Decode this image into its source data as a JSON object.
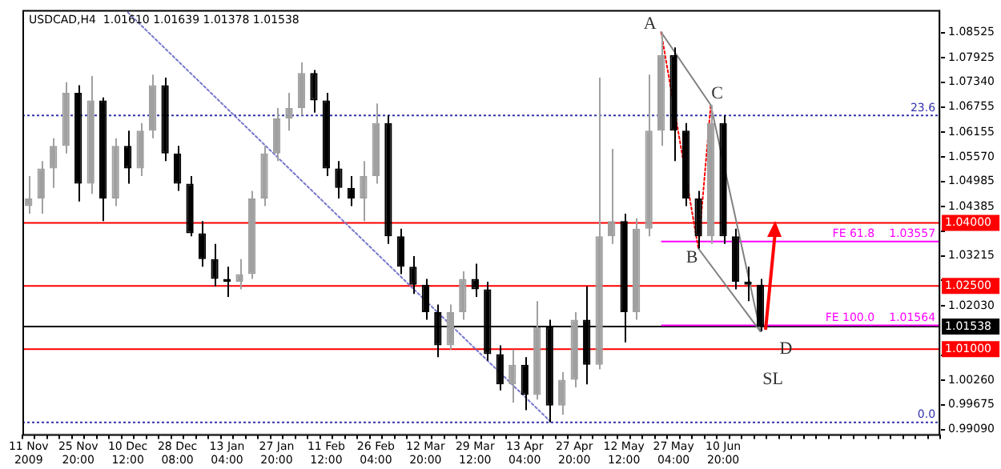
{
  "chart_data": {
    "type": "candlestick",
    "title": "USDCAD,H4  1.01610 1.01639 1.01378 1.01538",
    "categories": [
      "11 Nov 2009",
      null,
      null,
      null,
      "25 Nov 20:00",
      null,
      null,
      null,
      "10 Dec 12:00",
      null,
      null,
      null,
      "28 Dec 08:00",
      null,
      null,
      null,
      "13 Jan 04:00",
      null,
      null,
      null,
      "27 Jan 20:00",
      null,
      null,
      null,
      "11 Feb 12:00",
      null,
      null,
      null,
      "26 Feb 04:00",
      null,
      null,
      null,
      "12 Mar 20:00",
      null,
      null,
      null,
      "29 Mar 12:00",
      null,
      null,
      null,
      "13 Apr 04:00",
      null,
      null,
      null,
      "27 Apr 20:00",
      null,
      null,
      null,
      "12 May 12:00",
      null,
      null,
      null,
      "27 May 04:00",
      null,
      null,
      null,
      "10 Jun 20:00",
      null,
      null,
      null,
      null,
      null,
      null,
      null,
      null,
      null,
      null,
      null,
      null,
      null,
      null,
      null,
      null,
      null
    ],
    "series": [
      {
        "colors": [
          "#a0a0a0",
          "#a0a0a0",
          "#a0a0a0",
          "#a0a0a0",
          "#000000",
          "#a0a0a0",
          "#000000",
          "#a0a0a0",
          "#000000",
          "#a0a0a0",
          "#a0a0a0",
          "#000000",
          "#000000",
          "#000000",
          "#000000",
          "#000000",
          "#000000",
          "#a0a0a0",
          "#a0a0a0",
          "#a0a0a0",
          "#a0a0a0",
          "#a0a0a0",
          "#a0a0a0",
          "#000000",
          "#000000",
          "#000000",
          "#000000",
          "#a0a0a0",
          "#a0a0a0",
          "#000000",
          "#000000",
          "#000000",
          "#000000",
          "#000000",
          "#a0a0a0",
          "#a0a0a0",
          "#000000",
          "#000000",
          "#000000",
          "#a0a0a0",
          "#000000",
          "#a0a0a0",
          "#000000",
          "#a0a0a0",
          "#a0a0a0",
          "#000000",
          "#a0a0a0",
          "#a0a0a0",
          "#000000",
          "#a0a0a0",
          "#a0a0a0",
          "#a0a0a0",
          "#000000",
          "#000000",
          "#000000",
          "#a0a0a0",
          "#000000",
          "#000000",
          "#000000",
          "#000000",
          null,
          null,
          null,
          null,
          null,
          null,
          null,
          null,
          null,
          null,
          null,
          null,
          null,
          null
        ],
        "ohlc": [
          [
            1.044,
            1.0511,
            1.0422,
            1.0458
          ],
          [
            1.0458,
            1.0547,
            1.0422,
            1.0529
          ],
          [
            1.0529,
            1.0601,
            1.0483,
            1.0583
          ],
          [
            1.0583,
            1.0734,
            1.0565,
            1.0709
          ],
          [
            1.0709,
            1.0727,
            1.0451,
            1.0493
          ],
          [
            1.0493,
            1.0749,
            1.0469,
            1.0691
          ],
          [
            1.0691,
            1.0698,
            1.0404,
            1.0458
          ],
          [
            1.0458,
            1.0601,
            1.044,
            1.0583
          ],
          [
            1.0583,
            1.0619,
            1.0493,
            1.0529
          ],
          [
            1.0529,
            1.0637,
            1.0511,
            1.0619
          ],
          [
            1.0619,
            1.0752,
            1.0601,
            1.0727
          ],
          [
            1.0727,
            1.0745,
            1.0547,
            1.0565
          ],
          [
            1.0565,
            1.0583,
            1.0476,
            1.0493
          ],
          [
            1.0493,
            1.0511,
            1.0368,
            1.0375
          ],
          [
            1.0375,
            1.0404,
            1.0296,
            1.0314
          ],
          [
            1.0314,
            1.035,
            1.0249,
            1.0267
          ],
          [
            1.0267,
            1.0296,
            1.0224,
            1.026
          ],
          [
            1.026,
            1.0314,
            1.0242,
            1.0278
          ],
          [
            1.0278,
            1.0476,
            1.0267,
            1.0458
          ],
          [
            1.0458,
            1.0583,
            1.044,
            1.0565
          ],
          [
            1.0565,
            1.0673,
            1.0547,
            1.0648
          ],
          [
            1.0648,
            1.0709,
            1.0619,
            1.0673
          ],
          [
            1.0673,
            1.0781,
            1.0655,
            1.0756
          ],
          [
            1.0756,
            1.0763,
            1.0662,
            1.0691
          ],
          [
            1.0691,
            1.0709,
            1.0511,
            1.0529
          ],
          [
            1.0529,
            1.0547,
            1.0458,
            1.0483
          ],
          [
            1.0483,
            1.0511,
            1.044,
            1.0458
          ],
          [
            1.0458,
            1.0547,
            1.0404,
            1.0511
          ],
          [
            1.0511,
            1.0684,
            1.0493,
            1.0637
          ],
          [
            1.0637,
            1.0655,
            1.035,
            1.0368
          ],
          [
            1.0368,
            1.0386,
            1.0278,
            1.0296
          ],
          [
            1.0296,
            1.0321,
            1.0231,
            1.0253
          ],
          [
            1.0253,
            1.0267,
            1.017,
            1.0188
          ],
          [
            1.0188,
            1.0206,
            1.0081,
            1.0109
          ],
          [
            1.0109,
            1.0206,
            1.0099,
            1.0188
          ],
          [
            1.0188,
            1.0285,
            1.017,
            1.0267
          ],
          [
            1.0267,
            1.0303,
            1.0224,
            1.0242
          ],
          [
            1.0242,
            1.026,
            1.0073,
            1.0088
          ],
          [
            1.0088,
            1.0109,
            1.0002,
            1.0016
          ],
          [
            1.0016,
            1.0099,
            0.9973,
            1.0063
          ],
          [
            1.0063,
            1.0081,
            0.9955,
            0.9991
          ],
          [
            0.9991,
            1.0214,
            0.998,
            1.0152
          ],
          [
            1.0152,
            1.017,
            0.9926,
            0.9966
          ],
          [
            0.9966,
            1.0045,
            0.9944,
            1.0027
          ],
          [
            1.0027,
            1.0188,
            1.0009,
            1.017
          ],
          [
            1.017,
            1.0249,
            1.0016,
            1.0063
          ],
          [
            1.0063,
            1.0745,
            1.0052,
            1.0368
          ],
          [
            1.0368,
            1.0576,
            1.035,
            1.0404
          ],
          [
            1.0404,
            1.0422,
            1.0116,
            1.0188
          ],
          [
            1.0188,
            1.0411,
            1.017,
            1.0386
          ],
          [
            1.0386,
            1.0752,
            1.0368,
            1.0619
          ],
          [
            1.0619,
            1.0853,
            1.0583,
            1.0799
          ],
          [
            1.0799,
            1.0817,
            1.0547,
            1.0619
          ],
          [
            1.0619,
            1.0637,
            1.044,
            1.0458
          ],
          [
            1.0458,
            1.0476,
            1.0339,
            1.0368
          ],
          [
            1.0368,
            1.068,
            1.035,
            1.0637
          ],
          [
            1.0637,
            1.0655,
            1.035,
            1.0368
          ],
          [
            1.0368,
            1.0386,
            1.0242,
            1.026
          ],
          [
            1.026,
            1.0296,
            1.0214,
            1.0253
          ],
          [
            1.0253,
            1.0267,
            1.0142,
            1.01538
          ],
          null,
          null,
          null,
          null,
          null,
          null,
          null,
          null,
          null,
          null,
          null,
          null,
          null,
          null
        ]
      },
      {
        "type": "line",
        "color": "#7777cc",
        "line_style": "dotted",
        "values": [
          null,
          null,
          null,
          null,
          null,
          null,
          null,
          null,
          1.09,
          null,
          null,
          null,
          null,
          null,
          null,
          null,
          null,
          null,
          null,
          null,
          null,
          null,
          null,
          null,
          null,
          null,
          null,
          null,
          null,
          null,
          null,
          null,
          null,
          null,
          null,
          null,
          null,
          null,
          null,
          null,
          null,
          null,
          0.993,
          null,
          null,
          null,
          null,
          null,
          null,
          null,
          null,
          null,
          null,
          null,
          null,
          null,
          null,
          null,
          null,
          null,
          null,
          null,
          null,
          null,
          null,
          null,
          null,
          null,
          null,
          null,
          null,
          null,
          null,
          null
        ]
      },
      {
        "type": "line",
        "color": "#808080",
        "line_style": "solid",
        "values": [
          null,
          null,
          null,
          null,
          null,
          null,
          null,
          null,
          null,
          null,
          null,
          null,
          null,
          null,
          null,
          null,
          null,
          null,
          null,
          null,
          null,
          null,
          null,
          null,
          null,
          null,
          null,
          null,
          null,
          null,
          null,
          null,
          null,
          null,
          null,
          null,
          null,
          null,
          null,
          null,
          null,
          null,
          null,
          null,
          null,
          null,
          null,
          null,
          null,
          null,
          null,
          1.0853,
          null,
          null,
          null,
          1.068,
          null,
          null,
          null,
          1.0142,
          null,
          null,
          null,
          null,
          null,
          null,
          null,
          null,
          null,
          null,
          null,
          null,
          null,
          null
        ]
      },
      {
        "type": "line",
        "color": "#808080",
        "line_style": "solid",
        "values": [
          null,
          null,
          null,
          null,
          null,
          null,
          null,
          null,
          null,
          null,
          null,
          null,
          null,
          null,
          null,
          null,
          null,
          null,
          null,
          null,
          null,
          null,
          null,
          null,
          null,
          null,
          null,
          null,
          null,
          null,
          null,
          null,
          null,
          null,
          null,
          null,
          null,
          null,
          null,
          null,
          null,
          null,
          null,
          null,
          null,
          null,
          null,
          null,
          null,
          null,
          null,
          null,
          null,
          null,
          1.0339,
          null,
          null,
          null,
          null,
          1.0142,
          null,
          null,
          null,
          null,
          null,
          null,
          null,
          null,
          null,
          null,
          null,
          null,
          null,
          null
        ]
      },
      {
        "type": "line",
        "color": "#ff0000",
        "line_style": "dotted",
        "values": [
          null,
          null,
          null,
          null,
          null,
          null,
          null,
          null,
          null,
          null,
          null,
          null,
          null,
          null,
          null,
          null,
          null,
          null,
          null,
          null,
          null,
          null,
          null,
          null,
          null,
          null,
          null,
          null,
          null,
          null,
          null,
          null,
          null,
          null,
          null,
          null,
          null,
          null,
          null,
          null,
          null,
          null,
          null,
          null,
          null,
          null,
          null,
          null,
          null,
          null,
          null,
          1.0853,
          null,
          null,
          1.0339,
          1.068,
          null,
          null,
          null,
          null,
          null,
          null,
          null,
          null,
          null,
          null,
          null,
          null,
          null,
          null,
          null,
          null,
          null,
          null
        ]
      }
    ],
    "ylim": [
      0.9898,
      1.0906
    ],
    "yticks": [
      1.08525,
      1.07925,
      {
        "value": 1.0734,
        "label": "1.07340"
      },
      1.06755,
      1.06155,
      {
        "value": 1.0557,
        "label": "1.05570"
      },
      1.04985,
      1.04385,
      {
        "value": 1.038,
        "label": null
      },
      1.03215,
      {
        "value": 1.0263,
        "label": null
      },
      {
        "value": 1.0203,
        "label": "1.02030"
      },
      {
        "value": 1.0086,
        "label": null
      },
      {
        "value": 1.0026,
        "label": "1.00260"
      },
      0.99675,
      {
        "value": 0.9909,
        "label": "0.99090"
      }
    ],
    "ref_lines": [
      {
        "axis": "y",
        "value": 1.0655,
        "color": "#3333aa",
        "line_style": "dotted"
      },
      {
        "axis": "y",
        "value": 0.9926,
        "color": "#3333aa",
        "line_style": "dotted"
      },
      {
        "axis": "y",
        "value": 1.04,
        "label": "1.04000",
        "color": "#ff0000",
        "line_style": "solid"
      },
      {
        "axis": "y",
        "value": 1.025,
        "label": "1.02500",
        "color": "#ff0000",
        "line_style": "solid"
      },
      {
        "axis": "y",
        "value": 1.01,
        "label": "1.01000",
        "color": "#ff0000",
        "line_style": "solid"
      },
      {
        "axis": "y",
        "value": 1.01538,
        "label": "1.01538",
        "color": "#000000",
        "line_style": "solid"
      },
      {
        "axis": "y",
        "value": 1.03557,
        "color": "#ff00ff",
        "line_style": "solid"
      },
      {
        "axis": "y",
        "value": 1.01564,
        "color": "#ff00ff",
        "line_style": "solid"
      }
    ],
    "annotations": [
      "A",
      "B",
      "C",
      "D",
      "SL",
      {
        "text": "23.6",
        "y": 1.0655
      },
      {
        "text": "0.0",
        "y": 0.9926
      },
      {
        "text": "FE 61.8",
        "y": 1.03557
      },
      {
        "text": "1.03557",
        "y": 1.03557
      },
      {
        "text": "FE 100.0",
        "y": 1.01564
      },
      {
        "text": "1.01564",
        "y": 1.01564
      }
    ],
    "grid": false,
    "legend": false,
    "marker": "none"
  }
}
